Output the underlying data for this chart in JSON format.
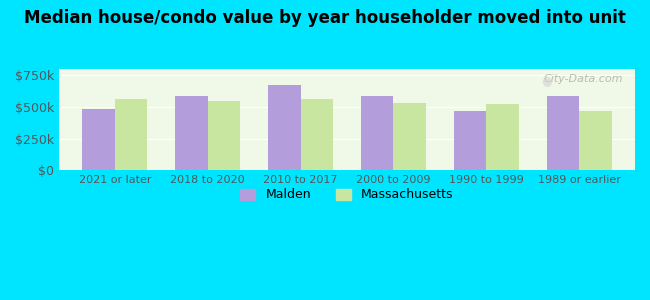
{
  "title": "Median house/condo value by year householder moved into unit",
  "categories": [
    "2021 or later",
    "2018 to 2020",
    "2010 to 2017",
    "2000 to 2009",
    "1990 to 1999",
    "1989 or earlier"
  ],
  "malden_values": [
    480000,
    590000,
    670000,
    590000,
    465000,
    590000
  ],
  "massachusetts_values": [
    565000,
    545000,
    565000,
    530000,
    525000,
    470000
  ],
  "malden_color": "#b39ddb",
  "massachusetts_color": "#c8e6a0",
  "background_color": "#00e5ff",
  "plot_bg_color": "#f0f8e8",
  "yticks": [
    0,
    250000,
    500000,
    750000
  ],
  "ytick_labels": [
    "$0",
    "$250k",
    "$500k",
    "$750k"
  ],
  "ylim": [
    0,
    800000
  ],
  "bar_width": 0.35,
  "legend_labels": [
    "Malden",
    "Massachusetts"
  ],
  "watermark": "City-Data.com"
}
